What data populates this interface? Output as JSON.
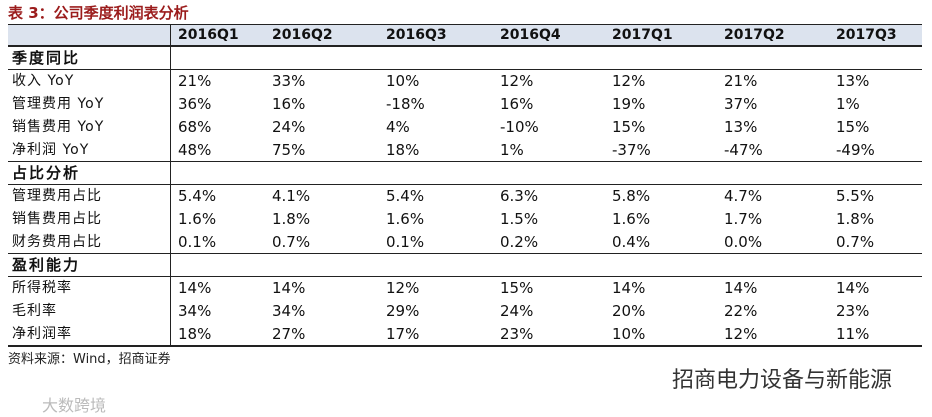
{
  "title": "表 3：公司季度利润表分析",
  "table": {
    "columns": [
      "2016Q1",
      "2016Q2",
      "2016Q3",
      "2016Q4",
      "2017Q1",
      "2017Q2",
      "2017Q3"
    ],
    "sections": [
      {
        "name": "季度同比",
        "rows": [
          {
            "label": "收入 YoY",
            "values": [
              "21%",
              "33%",
              "10%",
              "12%",
              "12%",
              "21%",
              "13%"
            ]
          },
          {
            "label": "管理费用 YoY",
            "values": [
              "36%",
              "16%",
              "-18%",
              "16%",
              "19%",
              "37%",
              "1%"
            ]
          },
          {
            "label": "销售费用 YoY",
            "values": [
              "68%",
              "24%",
              "4%",
              "-10%",
              "15%",
              "13%",
              "15%"
            ]
          },
          {
            "label": "净利润 YoY",
            "values": [
              "48%",
              "75%",
              "18%",
              "1%",
              "-37%",
              "-47%",
              "-49%"
            ]
          }
        ]
      },
      {
        "name": "占比分析",
        "rows": [
          {
            "label": "管理费用占比",
            "values": [
              "5.4%",
              "4.1%",
              "5.4%",
              "6.3%",
              "5.8%",
              "4.7%",
              "5.5%"
            ]
          },
          {
            "label": "销售费用占比",
            "values": [
              "1.6%",
              "1.8%",
              "1.6%",
              "1.5%",
              "1.6%",
              "1.7%",
              "1.8%"
            ]
          },
          {
            "label": "财务费用占比",
            "values": [
              "0.1%",
              "0.7%",
              "0.1%",
              "0.2%",
              "0.4%",
              "0.0%",
              "0.7%"
            ]
          }
        ]
      },
      {
        "name": "盈利能力",
        "rows": [
          {
            "label": "所得税率",
            "values": [
              "14%",
              "14%",
              "12%",
              "15%",
              "14%",
              "14%",
              "14%"
            ]
          },
          {
            "label": "毛利率",
            "values": [
              "34%",
              "34%",
              "29%",
              "24%",
              "20%",
              "22%",
              "23%"
            ]
          },
          {
            "label": "净利润率",
            "values": [
              "18%",
              "27%",
              "17%",
              "23%",
              "10%",
              "12%",
              "11%"
            ]
          }
        ]
      }
    ]
  },
  "source": "资料来源：Wind，招商证券",
  "watermark": "招商电力设备与新能源",
  "corner_mark": "大数跨境"
}
